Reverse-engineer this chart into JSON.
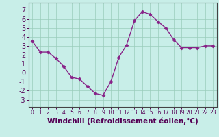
{
  "x": [
    0,
    1,
    2,
    3,
    4,
    5,
    6,
    7,
    8,
    9,
    10,
    11,
    12,
    13,
    14,
    15,
    16,
    17,
    18,
    19,
    20,
    21,
    22,
    23
  ],
  "y": [
    3.5,
    2.3,
    2.3,
    1.6,
    0.7,
    -0.5,
    -0.7,
    -1.5,
    -2.3,
    -2.5,
    -1.0,
    1.7,
    3.1,
    5.8,
    6.8,
    6.5,
    5.7,
    5.0,
    3.7,
    2.8,
    2.8,
    2.8,
    3.0,
    3.0
  ],
  "line_color": "#882288",
  "marker": "D",
  "marker_size": 2.5,
  "bg_color": "#c8eee8",
  "grid_color": "#99ccbb",
  "xlabel": "Windchill (Refroidissement éolien,°C)",
  "xlabel_fontsize": 7.5,
  "ylim": [
    -3.8,
    7.8
  ],
  "xlim": [
    -0.5,
    23.5
  ],
  "yticks": [
    -3,
    -2,
    -1,
    0,
    1,
    2,
    3,
    4,
    5,
    6,
    7
  ],
  "xticks": [
    0,
    1,
    2,
    3,
    4,
    5,
    6,
    7,
    8,
    9,
    10,
    11,
    12,
    13,
    14,
    15,
    16,
    17,
    18,
    19,
    20,
    21,
    22,
    23
  ],
  "x_tick_fontsize": 5.5,
  "y_tick_fontsize": 7.0,
  "line_width": 1.0,
  "spine_color": "#444444"
}
